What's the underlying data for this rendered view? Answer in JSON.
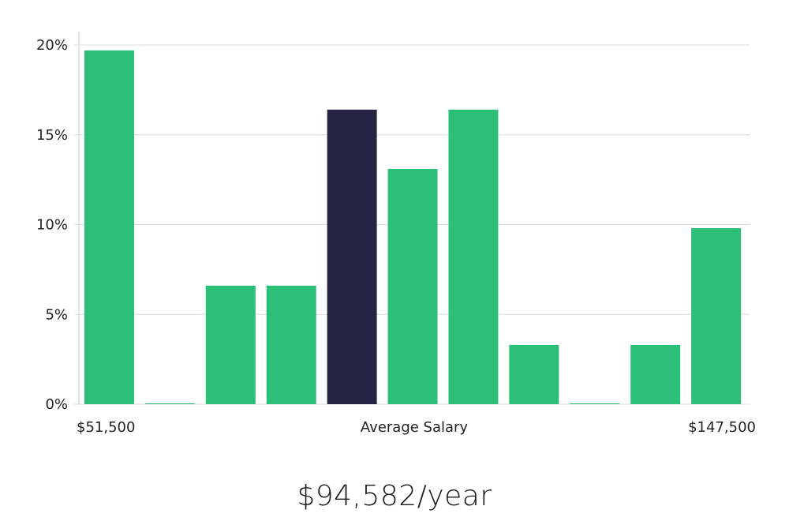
{
  "chart_data": {
    "type": "bar",
    "ylim": [
      0,
      20
    ],
    "yticks": [
      "0%",
      "5%",
      "10%",
      "15%",
      "20%"
    ],
    "ytick_values": [
      0,
      5,
      10,
      15,
      20
    ],
    "values": [
      19.7,
      0,
      6.6,
      6.6,
      16.4,
      13.1,
      16.4,
      3.3,
      0,
      3.3,
      9.8
    ],
    "highlight_index": 4,
    "xlabel_left": "$51,500",
    "xlabel_center": "Average Salary",
    "xlabel_right": "$147,500",
    "grid": true
  },
  "headline": "$94,582/year",
  "colors": {
    "bar": "#2bbf78",
    "highlight": "#272443",
    "grid": "#dcdcdc",
    "axis": "#cccccc"
  }
}
